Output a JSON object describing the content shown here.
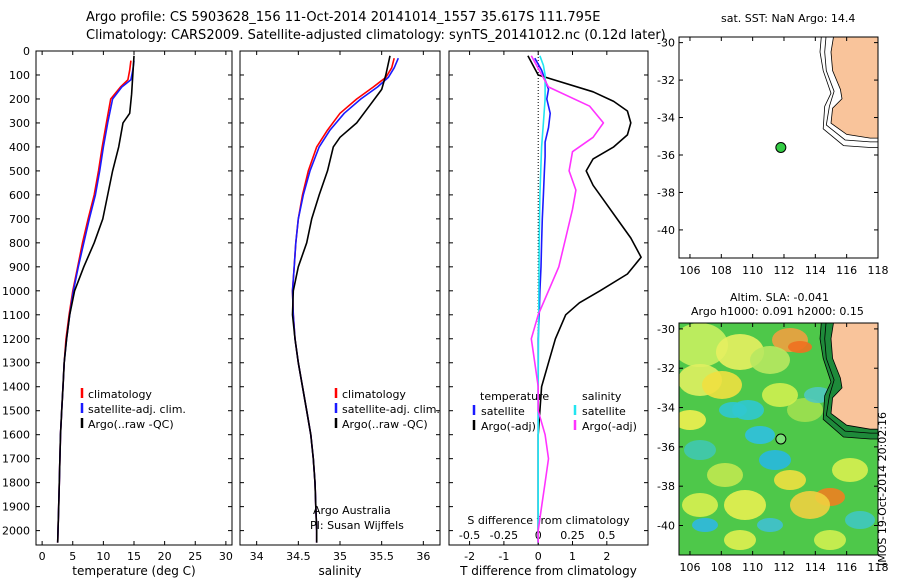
{
  "header": {
    "line1": "Argo profile: CS 5903628_156 11-Oct-2014 20141014_1557 35.617S 111.795E",
    "line2": "Climatology: CARS2009. Satellite-adjusted climatology: synTS_20141012.nc (0.12d later)"
  },
  "colors": {
    "red": "#ff0000",
    "blue": "#1a1aff",
    "black": "#000000",
    "cyan": "#22e5f0",
    "magenta": "#ff33ff",
    "land": "#f9c49b",
    "marker": "#33cc44"
  },
  "y_axis": {
    "ticks": [
      0,
      100,
      200,
      300,
      400,
      500,
      600,
      700,
      800,
      900,
      1000,
      1100,
      1200,
      1300,
      1400,
      1500,
      1600,
      1700,
      1800,
      1900,
      2000
    ],
    "lim": [
      0,
      2060
    ],
    "reversed": true
  },
  "chart_data": [
    {
      "type": "line",
      "xlabel": "temperature (deg C)",
      "xlim": [
        -1,
        31
      ],
      "xticks": [
        0,
        5,
        10,
        15,
        20,
        25,
        30
      ],
      "legend": [
        "climatology",
        "satellite-adj. clim.",
        "Argo(..raw -QC)"
      ],
      "series": [
        {
          "name": "climatology",
          "color": "red",
          "points": [
            [
              14.5,
              40
            ],
            [
              14.3,
              80
            ],
            [
              14.0,
              120
            ],
            [
              12.8,
              150
            ],
            [
              11.2,
              200
            ],
            [
              10.5,
              300
            ],
            [
              9.8,
              400
            ],
            [
              9.2,
              500
            ],
            [
              8.5,
              600
            ],
            [
              7.5,
              700
            ],
            [
              6.6,
              800
            ],
            [
              5.8,
              900
            ],
            [
              5.0,
              1000
            ],
            [
              4.4,
              1100
            ],
            [
              3.9,
              1200
            ],
            [
              3.6,
              1300
            ],
            [
              3.4,
              1400
            ],
            [
              3.2,
              1500
            ],
            [
              3.0,
              1600
            ],
            [
              2.9,
              1700
            ],
            [
              2.8,
              1800
            ],
            [
              2.7,
              1900
            ],
            [
              2.6,
              2000
            ],
            [
              2.55,
              2050
            ]
          ]
        },
        {
          "name": "satellite-adj. clim.",
          "color": "blue",
          "points": [
            [
              15.0,
              40
            ],
            [
              14.8,
              80
            ],
            [
              14.5,
              120
            ],
            [
              13.0,
              150
            ],
            [
              11.5,
              200
            ],
            [
              10.7,
              300
            ],
            [
              10.0,
              400
            ],
            [
              9.4,
              500
            ],
            [
              8.7,
              600
            ],
            [
              7.7,
              700
            ],
            [
              6.8,
              800
            ],
            [
              5.9,
              900
            ],
            [
              5.1,
              1000
            ],
            [
              4.5,
              1100
            ],
            [
              4.0,
              1200
            ],
            [
              3.6,
              1300
            ],
            [
              3.4,
              1400
            ],
            [
              3.2,
              1500
            ],
            [
              3.0,
              1600
            ],
            [
              2.9,
              1700
            ],
            [
              2.8,
              1800
            ],
            [
              2.7,
              1900
            ],
            [
              2.6,
              2000
            ],
            [
              2.55,
              2050
            ]
          ]
        },
        {
          "name": "Argo(..raw -QC)",
          "color": "black",
          "points": [
            [
              15.0,
              20
            ],
            [
              14.8,
              100
            ],
            [
              14.6,
              180
            ],
            [
              14.3,
              260
            ],
            [
              13.2,
              300
            ],
            [
              12.5,
              400
            ],
            [
              11.5,
              500
            ],
            [
              10.7,
              600
            ],
            [
              9.9,
              700
            ],
            [
              8.5,
              800
            ],
            [
              6.8,
              900
            ],
            [
              5.3,
              1000
            ],
            [
              4.5,
              1100
            ],
            [
              4.0,
              1200
            ],
            [
              3.6,
              1300
            ],
            [
              3.4,
              1400
            ],
            [
              3.2,
              1500
            ],
            [
              3.0,
              1600
            ],
            [
              2.9,
              1700
            ],
            [
              2.8,
              1800
            ],
            [
              2.7,
              1900
            ],
            [
              2.6,
              2000
            ],
            [
              2.55,
              2050
            ]
          ]
        }
      ]
    },
    {
      "type": "line",
      "xlabel": "salinity",
      "xlim": [
        33.8,
        36.2
      ],
      "xticks": [
        34,
        34.5,
        35,
        35.5,
        36
      ],
      "legend": [
        "climatology",
        "satellite-adj. clim.",
        "Argo(..raw -QC)"
      ],
      "note1": "Argo Australia",
      "note2": "PI: Susan Wijffels",
      "series": [
        {
          "name": "climatology",
          "color": "red",
          "points": [
            [
              35.65,
              30
            ],
            [
              35.62,
              70
            ],
            [
              35.55,
              110
            ],
            [
              35.4,
              150
            ],
            [
              35.2,
              200
            ],
            [
              35.0,
              260
            ],
            [
              34.85,
              330
            ],
            [
              34.72,
              400
            ],
            [
              34.62,
              500
            ],
            [
              34.55,
              600
            ],
            [
              34.5,
              700
            ],
            [
              34.47,
              800
            ],
            [
              34.45,
              900
            ],
            [
              34.43,
              1000
            ],
            [
              34.44,
              1100
            ],
            [
              34.46,
              1200
            ],
            [
              34.5,
              1300
            ],
            [
              34.55,
              1400
            ],
            [
              34.6,
              1500
            ],
            [
              34.65,
              1600
            ],
            [
              34.68,
              1700
            ],
            [
              34.7,
              1800
            ],
            [
              34.71,
              1900
            ],
            [
              34.72,
              2000
            ],
            [
              34.72,
              2050
            ]
          ]
        },
        {
          "name": "satellite-adj. clim.",
          "color": "blue",
          "points": [
            [
              35.7,
              30
            ],
            [
              35.65,
              70
            ],
            [
              35.58,
              110
            ],
            [
              35.45,
              150
            ],
            [
              35.25,
              200
            ],
            [
              35.05,
              260
            ],
            [
              34.88,
              330
            ],
            [
              34.75,
              400
            ],
            [
              34.64,
              500
            ],
            [
              34.56,
              600
            ],
            [
              34.5,
              700
            ],
            [
              34.47,
              800
            ],
            [
              34.45,
              900
            ],
            [
              34.43,
              1000
            ],
            [
              34.44,
              1100
            ],
            [
              34.46,
              1200
            ],
            [
              34.5,
              1300
            ],
            [
              34.55,
              1400
            ],
            [
              34.6,
              1500
            ],
            [
              34.65,
              1600
            ],
            [
              34.68,
              1700
            ],
            [
              34.7,
              1800
            ],
            [
              34.71,
              1900
            ],
            [
              34.72,
              2000
            ],
            [
              34.72,
              2050
            ]
          ]
        },
        {
          "name": "Argo(..raw -QC)",
          "color": "black",
          "points": [
            [
              35.6,
              20
            ],
            [
              35.55,
              100
            ],
            [
              35.5,
              160
            ],
            [
              35.35,
              230
            ],
            [
              35.2,
              300
            ],
            [
              35.0,
              360
            ],
            [
              34.92,
              400
            ],
            [
              34.85,
              500
            ],
            [
              34.75,
              600
            ],
            [
              34.66,
              700
            ],
            [
              34.6,
              800
            ],
            [
              34.5,
              900
            ],
            [
              34.44,
              1000
            ],
            [
              34.43,
              1100
            ],
            [
              34.46,
              1200
            ],
            [
              34.5,
              1300
            ],
            [
              34.55,
              1400
            ],
            [
              34.6,
              1500
            ],
            [
              34.65,
              1600
            ],
            [
              34.68,
              1700
            ],
            [
              34.7,
              1800
            ],
            [
              34.71,
              1900
            ],
            [
              34.72,
              2000
            ],
            [
              34.72,
              2050
            ]
          ]
        }
      ]
    },
    {
      "type": "line",
      "xlabel": "T difference from climatology",
      "xlabel_top": "S difference from climatology",
      "xlim": [
        -2.6,
        3.2
      ],
      "xticks": [
        -2,
        -1,
        0,
        1,
        2
      ],
      "xticks_top": [
        "-0.5",
        "-0.25",
        "0",
        "0.25",
        "0.5"
      ],
      "legend_headers": [
        "temperature",
        "salinity"
      ],
      "legend": [
        "satellite",
        "Argo(-adj)",
        "satellite",
        "Argo(-adj)"
      ],
      "series": [
        {
          "name": "temperature satellite",
          "color": "blue",
          "points": [
            [
              -0.1,
              30
            ],
            [
              0.1,
              80
            ],
            [
              0.2,
              120
            ],
            [
              0.3,
              160
            ],
            [
              0.25,
              200
            ],
            [
              0.35,
              260
            ],
            [
              0.3,
              320
            ],
            [
              0.2,
              380
            ],
            [
              0.2,
              440
            ],
            [
              0.18,
              500
            ],
            [
              0.15,
              600
            ],
            [
              0.12,
              700
            ],
            [
              0.1,
              800
            ],
            [
              0.08,
              900
            ],
            [
              0.05,
              1000
            ],
            [
              0.03,
              1100
            ],
            [
              0.0,
              1200
            ],
            [
              0.0,
              1400
            ],
            [
              0.0,
              1600
            ],
            [
              0.0,
              1800
            ],
            [
              0.0,
              2050
            ]
          ]
        },
        {
          "name": "temperature Argo(-adj)",
          "color": "black",
          "points": [
            [
              -0.3,
              20
            ],
            [
              0.0,
              100
            ],
            [
              1.6,
              170
            ],
            [
              2.2,
              210
            ],
            [
              2.6,
              250
            ],
            [
              2.7,
              300
            ],
            [
              2.6,
              350
            ],
            [
              2.2,
              400
            ],
            [
              1.6,
              450
            ],
            [
              1.4,
              500
            ],
            [
              1.6,
              560
            ],
            [
              1.9,
              620
            ],
            [
              2.3,
              700
            ],
            [
              2.7,
              780
            ],
            [
              3.0,
              860
            ],
            [
              2.6,
              930
            ],
            [
              1.8,
              1000
            ],
            [
              1.2,
              1050
            ],
            [
              0.8,
              1100
            ],
            [
              0.5,
              1200
            ],
            [
              0.3,
              1300
            ],
            [
              0.1,
              1400
            ],
            [
              0.0,
              1600
            ],
            [
              0.0,
              1800
            ],
            [
              0.0,
              2050
            ]
          ]
        },
        {
          "name": "salinity satellite",
          "color": "cyan",
          "points": [
            [
              0.05,
              20
            ],
            [
              0.15,
              60
            ],
            [
              0.2,
              100
            ],
            [
              0.2,
              200
            ],
            [
              0.15,
              300
            ],
            [
              0.1,
              400
            ],
            [
              0.05,
              600
            ],
            [
              0.03,
              800
            ],
            [
              0.02,
              1000
            ],
            [
              0.01,
              1200
            ],
            [
              0.0,
              1400
            ],
            [
              0.0,
              1600
            ],
            [
              0.0,
              2050
            ]
          ]
        },
        {
          "name": "salinity Argo(-adj)",
          "color": "magenta",
          "points": [
            [
              -0.2,
              20
            ],
            [
              0.3,
              150
            ],
            [
              1.5,
              230
            ],
            [
              1.9,
              300
            ],
            [
              1.6,
              360
            ],
            [
              1.0,
              420
            ],
            [
              0.9,
              500
            ],
            [
              1.1,
              580
            ],
            [
              1.0,
              660
            ],
            [
              0.8,
              780
            ],
            [
              0.6,
              900
            ],
            [
              0.3,
              1000
            ],
            [
              0.0,
              1100
            ],
            [
              -0.2,
              1200
            ],
            [
              -0.1,
              1300
            ],
            [
              0.0,
              1400
            ],
            [
              0.0,
              1500
            ],
            [
              0.2,
              1600
            ],
            [
              0.3,
              1700
            ],
            [
              0.2,
              1800
            ],
            [
              0.1,
              1900
            ],
            [
              0.0,
              2000
            ],
            [
              0.0,
              2050
            ]
          ]
        }
      ]
    },
    {
      "type": "scatter",
      "title": "sat. SST: NaN Argo: 14.4",
      "xlim": [
        105.3,
        118
      ],
      "ylim": [
        -41.5,
        -29.7
      ],
      "xticks": [
        106,
        108,
        110,
        112,
        114,
        116,
        118
      ],
      "yticks": [
        -30,
        -32,
        -34,
        -36,
        -38,
        -40
      ],
      "points": [
        [
          111.8,
          -35.6
        ]
      ]
    },
    {
      "type": "heatmap",
      "title_line1": "Altim. SLA: -0.041",
      "title_line2": "Argo h1000: 0.091 h2000: 0.15",
      "xlim": [
        105.3,
        118
      ],
      "ylim": [
        -41.5,
        -29.7
      ],
      "xticks": [
        106,
        108,
        110,
        112,
        114,
        116,
        118
      ],
      "yticks": [
        -30,
        -32,
        -34,
        -36,
        -38,
        -40
      ],
      "points": [
        [
          111.8,
          -35.6
        ]
      ],
      "side_label": "IMOS 19-Oct-2014 20:02:16"
    }
  ]
}
